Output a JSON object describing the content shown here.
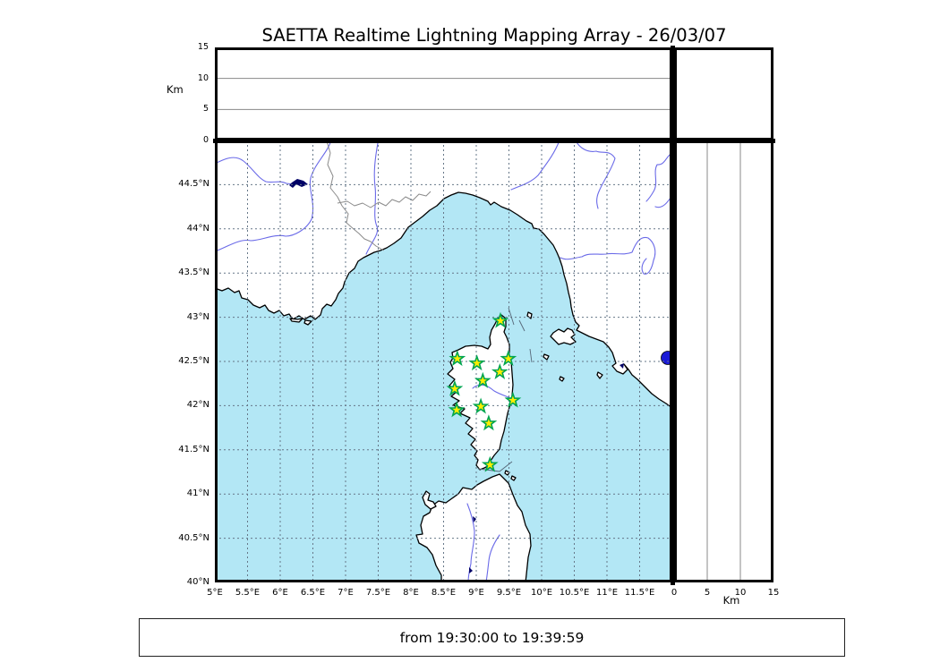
{
  "title": "SAETTA Realtime Lightning Mapping Array - 26/03/07",
  "footer": {
    "text": "from 19:30:00 to 19:39:59"
  },
  "altitude_axis": {
    "unit": "Km",
    "min": 0,
    "max": 15,
    "ticks": [
      0,
      5,
      10,
      15
    ],
    "gridlines": [
      5,
      10
    ]
  },
  "map": {
    "lon": {
      "min": 5,
      "max": 12,
      "tick_values": [
        5,
        5.5,
        6,
        6.5,
        7,
        7.5,
        8,
        8.5,
        9,
        9.5,
        10,
        10.5,
        11,
        11.5
      ],
      "tick_labels": [
        "5°E",
        "5.5°E",
        "6°E",
        "6.5°E",
        "7°E",
        "7.5°E",
        "8°E",
        "8.5°E",
        "9°E",
        "9.5°E",
        "10°E",
        "10.5°E",
        "11°E",
        "11.5°E"
      ]
    },
    "lat": {
      "min": 40,
      "max": 45,
      "tick_values": [
        40,
        40.5,
        41,
        41.5,
        42,
        42.5,
        43,
        43.5,
        44,
        44.5
      ],
      "tick_labels": [
        "40°N",
        "40.5°N",
        "41°N",
        "41.5°N",
        "42°N",
        "42.5°N",
        "43°N",
        "43.5°N",
        "44°N",
        "44.5°N"
      ]
    },
    "stations": [
      {
        "lon": 9.37,
        "lat": 42.96
      },
      {
        "lon": 8.71,
        "lat": 42.53
      },
      {
        "lon": 9.01,
        "lat": 42.48
      },
      {
        "lon": 9.49,
        "lat": 42.53
      },
      {
        "lon": 9.36,
        "lat": 42.38
      },
      {
        "lon": 9.1,
        "lat": 42.28
      },
      {
        "lon": 8.67,
        "lat": 42.19
      },
      {
        "lon": 9.56,
        "lat": 42.06
      },
      {
        "lon": 9.07,
        "lat": 41.99
      },
      {
        "lon": 8.7,
        "lat": 41.95
      },
      {
        "lon": 9.19,
        "lat": 41.8
      },
      {
        "lon": 9.21,
        "lat": 41.33
      }
    ]
  },
  "colors": {
    "sea": "#B3E7F5",
    "land": "#FFFFFF",
    "coast": "#000000",
    "river": "#6A6AE8",
    "border_line": "#8A8A8A",
    "grid": "#667788",
    "station_fill": "#FFEE00",
    "station_stroke": "#00A550",
    "lake": "#000066",
    "lake_bolsena": "#1A1AD6"
  }
}
